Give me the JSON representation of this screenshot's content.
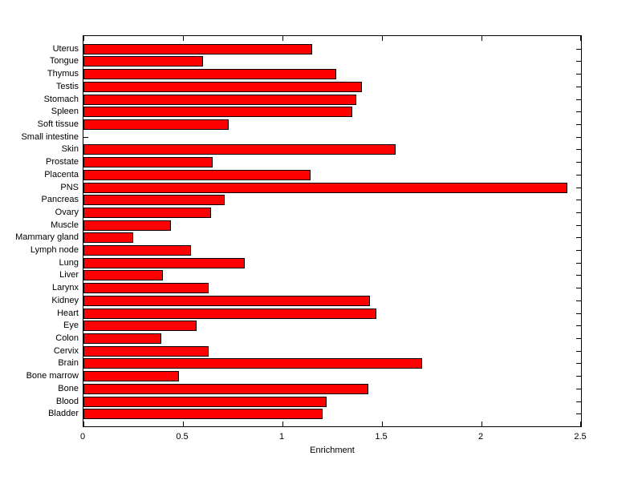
{
  "figure": {
    "background_color": "#ffffff",
    "text_color": "#000000"
  },
  "chart_data": {
    "type": "bar",
    "orientation": "horizontal",
    "title": "",
    "xlabel": "Enrichment",
    "ylabel": "",
    "xlim": [
      0,
      2.5
    ],
    "xticks": [
      0,
      0.5,
      1,
      1.5,
      2,
      2.5
    ],
    "xtick_labels": [
      "0",
      "0.5",
      "1",
      "1.5",
      "2",
      "2.5"
    ],
    "grid": false,
    "legend": false,
    "bar_color": "#ff0000",
    "bar_edge_color": "#000000",
    "categories": [
      "Uterus",
      "Tongue",
      "Thymus",
      "Testis",
      "Stomach",
      "Spleen",
      "Soft tissue",
      "Small intestine",
      "Skin",
      "Prostate",
      "Placenta",
      "PNS",
      "Pancreas",
      "Ovary",
      "Muscle",
      "Mammary gland",
      "Lymph node",
      "Lung",
      "Liver",
      "Larynx",
      "Kidney",
      "Heart",
      "Eye",
      "Colon",
      "Cervix",
      "Brain",
      "Bone marrow",
      "Bone",
      "Blood",
      "Bladder"
    ],
    "values": [
      1.15,
      0.6,
      1.27,
      1.4,
      1.37,
      1.35,
      0.73,
      0,
      1.57,
      0.65,
      1.14,
      2.43,
      0.71,
      0.64,
      0.44,
      0.25,
      0.54,
      0.81,
      0.4,
      0.63,
      1.44,
      1.47,
      0.57,
      0.39,
      0.63,
      1.7,
      0.48,
      1.43,
      1.22,
      1.2
    ]
  }
}
